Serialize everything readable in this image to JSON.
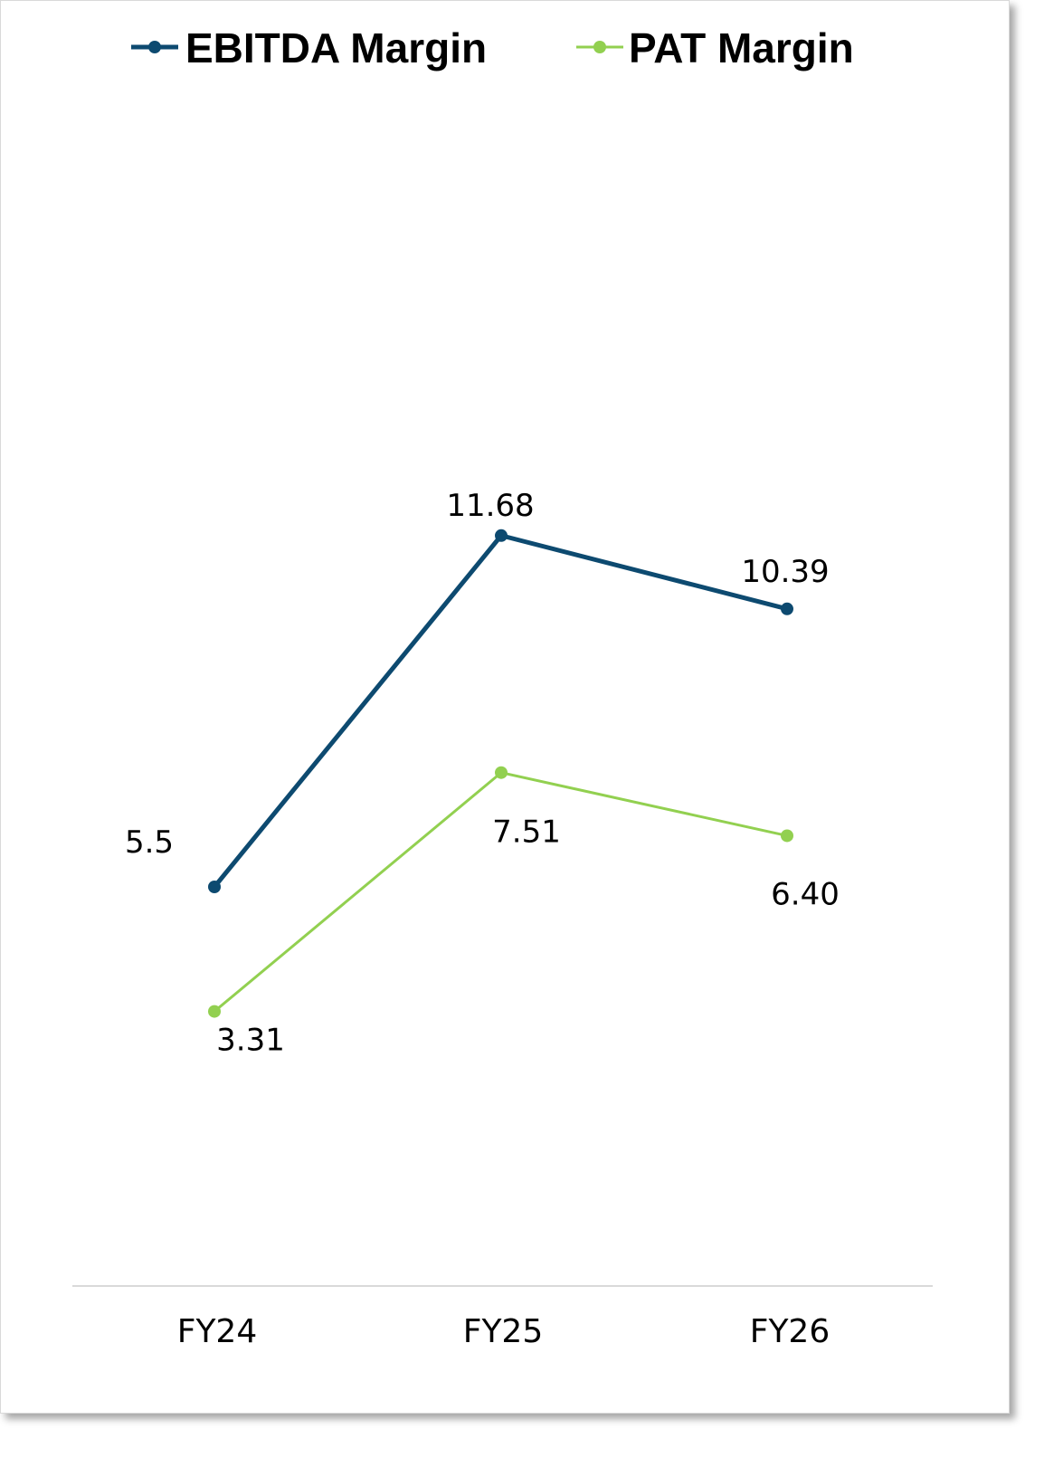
{
  "chart_data": {
    "type": "line",
    "categories": [
      "FY24",
      "FY25",
      "FY26"
    ],
    "series": [
      {
        "name": "EBITDA Margin",
        "values": [
          5.5,
          11.68,
          10.39
        ],
        "labels": [
          "5.5",
          "11.68",
          "10.39"
        ],
        "color": "#0d4a70"
      },
      {
        "name": "PAT Margin",
        "values": [
          3.31,
          7.51,
          6.4
        ],
        "labels": [
          "3.31",
          "7.51",
          "6.40"
        ],
        "color": "#92d050"
      }
    ],
    "legend_position": "top",
    "grid": false
  }
}
